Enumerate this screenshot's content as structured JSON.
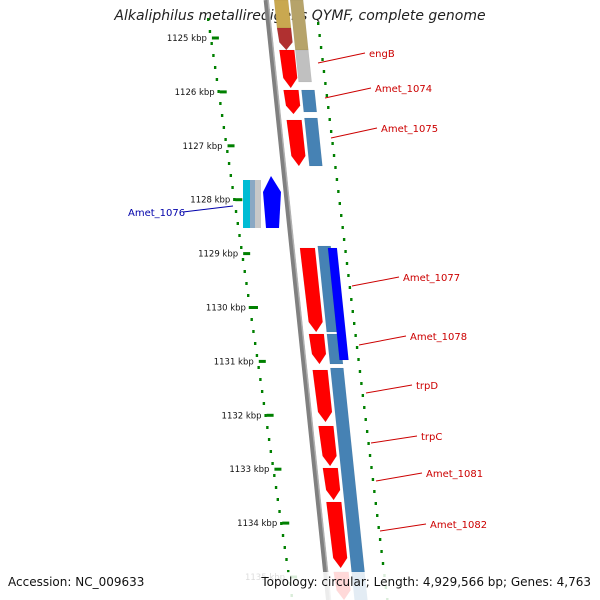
{
  "title": "Alkaliphilus metalliredigens QYMF, complete genome",
  "footer": {
    "accession": "Accession: NC_009633",
    "summary": "Topology: circular; Length: 4,929,566 bp; Genes: 4,763"
  },
  "colors": {
    "forward_cds": "#ff0000",
    "reverse_cds": "#0000ff",
    "orf": "#4682b4",
    "tick": "#008000",
    "backbone": "#808080",
    "label_forward": "#cc0000",
    "label_reverse": "#0000aa"
  },
  "ruler": {
    "ticks": [
      "1125 kbp",
      "1126 kbp",
      "1127 kbp",
      "1128 kbp",
      "1129 kbp",
      "1130 kbp",
      "1131 kbp",
      "1132 kbp",
      "1133 kbp",
      "1134 kbp",
      "1135 kbp"
    ]
  },
  "genes": [
    {
      "label": "engB",
      "strand": "forward"
    },
    {
      "label": "Amet_1074",
      "strand": "forward"
    },
    {
      "label": "Amet_1075",
      "strand": "forward"
    },
    {
      "label": "Amet_1076",
      "strand": "reverse"
    },
    {
      "label": "Amet_1077",
      "strand": "forward"
    },
    {
      "label": "Amet_1078",
      "strand": "forward"
    },
    {
      "label": "trpD",
      "strand": "forward"
    },
    {
      "label": "trpC",
      "strand": "forward"
    },
    {
      "label": "Amet_1081",
      "strand": "forward"
    },
    {
      "label": "Amet_1082",
      "strand": "forward"
    }
  ]
}
